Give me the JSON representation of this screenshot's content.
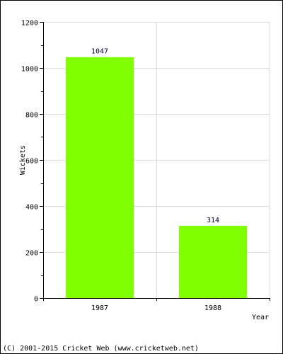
{
  "chart_data": {
    "type": "bar",
    "categories": [
      "1987",
      "1988"
    ],
    "series": [
      {
        "values": [
          1047,
          314
        ]
      }
    ],
    "data_labels": [
      "1047",
      "314"
    ],
    "title": "",
    "xlabel": "Year",
    "ylabel": "Wickets",
    "ylim": [
      0,
      1200
    ],
    "yticks": [
      0,
      200,
      400,
      600,
      800,
      1000,
      1200
    ],
    "grid": true,
    "legend": "none",
    "colors": {
      "bar": "#80ff00",
      "grid": "#dddddd",
      "axis": "#000000",
      "data_label": "#000033"
    }
  },
  "footer": {
    "credit": "(C) 2001-2015 Cricket Web (www.cricketweb.net)"
  }
}
